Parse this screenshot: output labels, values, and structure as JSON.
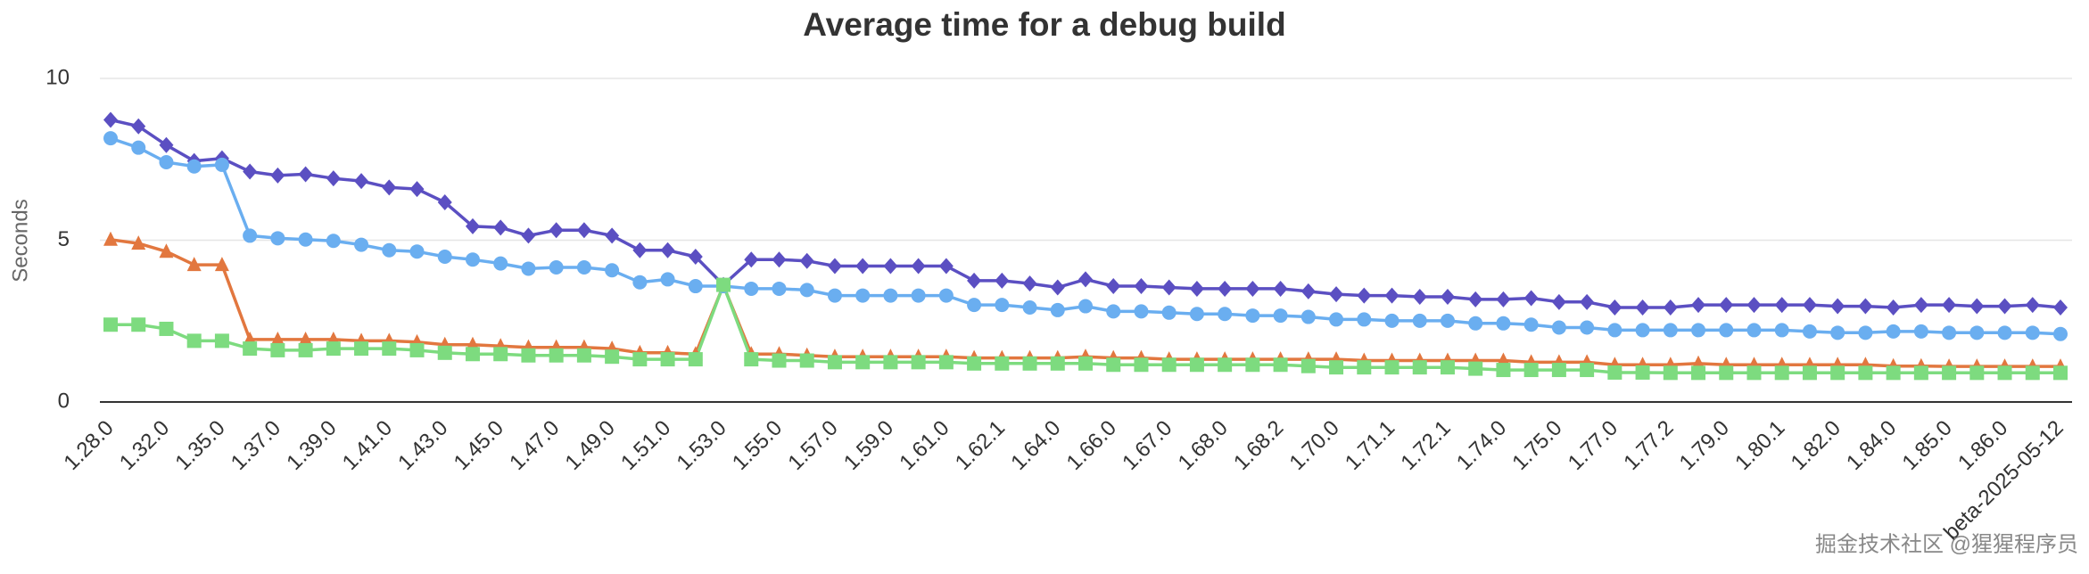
{
  "chart_data": {
    "type": "line",
    "title": "Average time for a debug build",
    "y_label": "Seconds",
    "watermark": "掘金技术社区 @猩猩程序员",
    "categories": [
      "1.28.0",
      null,
      "1.32.0",
      null,
      "1.35.0",
      null,
      "1.37.0",
      null,
      "1.39.0",
      null,
      "1.41.0",
      null,
      "1.43.0",
      null,
      "1.45.0",
      null,
      "1.47.0",
      null,
      "1.49.0",
      null,
      "1.51.0",
      null,
      "1.53.0",
      null,
      "1.55.0",
      null,
      "1.57.0",
      null,
      "1.59.0",
      null,
      "1.61.0",
      null,
      "1.62.1",
      null,
      "1.64.0",
      null,
      "1.66.0",
      null,
      "1.67.0",
      null,
      "1.68.0",
      null,
      "1.68.2",
      null,
      "1.70.0",
      null,
      "1.71.1",
      null,
      "1.72.1",
      null,
      "1.74.0",
      null,
      "1.75.0",
      null,
      "1.77.0",
      null,
      "1.77.2",
      null,
      "1.79.0",
      null,
      "1.80.1",
      null,
      "1.82.0",
      null,
      "1.84.0",
      null,
      "1.85.0",
      null,
      "1.86.0",
      null,
      "beta-2025-05-12"
    ],
    "series": [
      {
        "color": "#5b4fc2",
        "marker": "diamond",
        "values": [
          8.72,
          8.52,
          7.94,
          7.45,
          7.53,
          7.12,
          7.0,
          7.04,
          6.91,
          6.83,
          6.63,
          6.58,
          6.17,
          5.43,
          5.39,
          5.14,
          5.31,
          5.31,
          5.14,
          4.69,
          4.69,
          4.49,
          3.62,
          4.4,
          4.4,
          4.36,
          4.2,
          4.2,
          4.2,
          4.2,
          4.2,
          3.75,
          3.75,
          3.66,
          3.54,
          3.79,
          3.58,
          3.58,
          3.54,
          3.5,
          3.5,
          3.5,
          3.5,
          3.42,
          3.33,
          3.29,
          3.29,
          3.25,
          3.25,
          3.17,
          3.17,
          3.21,
          3.09,
          3.09,
          2.92,
          2.92,
          2.92,
          3.0,
          3.0,
          3.0,
          3.0,
          3.0,
          2.96,
          2.96,
          2.92,
          3.0,
          3.0,
          2.96,
          2.96,
          3.0,
          2.92
        ]
      },
      {
        "color": "#6aaef0",
        "marker": "circle",
        "values": [
          8.15,
          7.86,
          7.41,
          7.28,
          7.33,
          5.14,
          5.06,
          5.02,
          4.98,
          4.86,
          4.69,
          4.65,
          4.49,
          4.4,
          4.28,
          4.12,
          4.16,
          4.16,
          4.07,
          3.7,
          3.79,
          3.58,
          3.58,
          3.5,
          3.5,
          3.46,
          3.29,
          3.29,
          3.29,
          3.29,
          3.29,
          3.0,
          3.0,
          2.92,
          2.84,
          2.96,
          2.8,
          2.8,
          2.76,
          2.72,
          2.72,
          2.67,
          2.67,
          2.63,
          2.55,
          2.55,
          2.51,
          2.51,
          2.51,
          2.43,
          2.43,
          2.39,
          2.3,
          2.3,
          2.22,
          2.22,
          2.22,
          2.22,
          2.22,
          2.22,
          2.22,
          2.18,
          2.14,
          2.14,
          2.18,
          2.18,
          2.14,
          2.14,
          2.14,
          2.14,
          2.1
        ]
      },
      {
        "color": "#e2773f",
        "marker": "triangle",
        "values": [
          5.02,
          4.9,
          4.65,
          4.24,
          4.24,
          1.93,
          1.93,
          1.93,
          1.93,
          1.89,
          1.89,
          1.85,
          1.77,
          1.77,
          1.73,
          1.69,
          1.69,
          1.69,
          1.65,
          1.52,
          1.52,
          1.48,
          3.6,
          1.48,
          1.48,
          1.44,
          1.4,
          1.4,
          1.4,
          1.4,
          1.4,
          1.36,
          1.36,
          1.36,
          1.36,
          1.4,
          1.36,
          1.36,
          1.32,
          1.32,
          1.32,
          1.32,
          1.32,
          1.32,
          1.32,
          1.28,
          1.28,
          1.28,
          1.28,
          1.28,
          1.28,
          1.23,
          1.23,
          1.23,
          1.15,
          1.15,
          1.15,
          1.19,
          1.15,
          1.15,
          1.15,
          1.15,
          1.15,
          1.15,
          1.11,
          1.11,
          1.1,
          1.1,
          1.1,
          1.1,
          1.1
        ]
      },
      {
        "color": "#7ddb7f",
        "marker": "square",
        "values": [
          2.39,
          2.39,
          2.26,
          1.89,
          1.89,
          1.65,
          1.6,
          1.6,
          1.65,
          1.65,
          1.65,
          1.6,
          1.52,
          1.48,
          1.48,
          1.44,
          1.44,
          1.44,
          1.4,
          1.32,
          1.32,
          1.32,
          3.62,
          1.32,
          1.28,
          1.28,
          1.23,
          1.23,
          1.23,
          1.23,
          1.23,
          1.19,
          1.19,
          1.19,
          1.19,
          1.19,
          1.15,
          1.15,
          1.15,
          1.15,
          1.15,
          1.15,
          1.15,
          1.11,
          1.07,
          1.07,
          1.07,
          1.07,
          1.07,
          1.03,
          0.99,
          0.99,
          0.99,
          0.99,
          0.91,
          0.91,
          0.9,
          0.9,
          0.9,
          0.9,
          0.9,
          0.9,
          0.9,
          0.9,
          0.9,
          0.9,
          0.9,
          0.9,
          0.9,
          0.9,
          0.9
        ]
      }
    ],
    "ylim": [
      0,
      10
    ],
    "yticks": [
      0,
      5,
      10
    ],
    "grid": true
  }
}
